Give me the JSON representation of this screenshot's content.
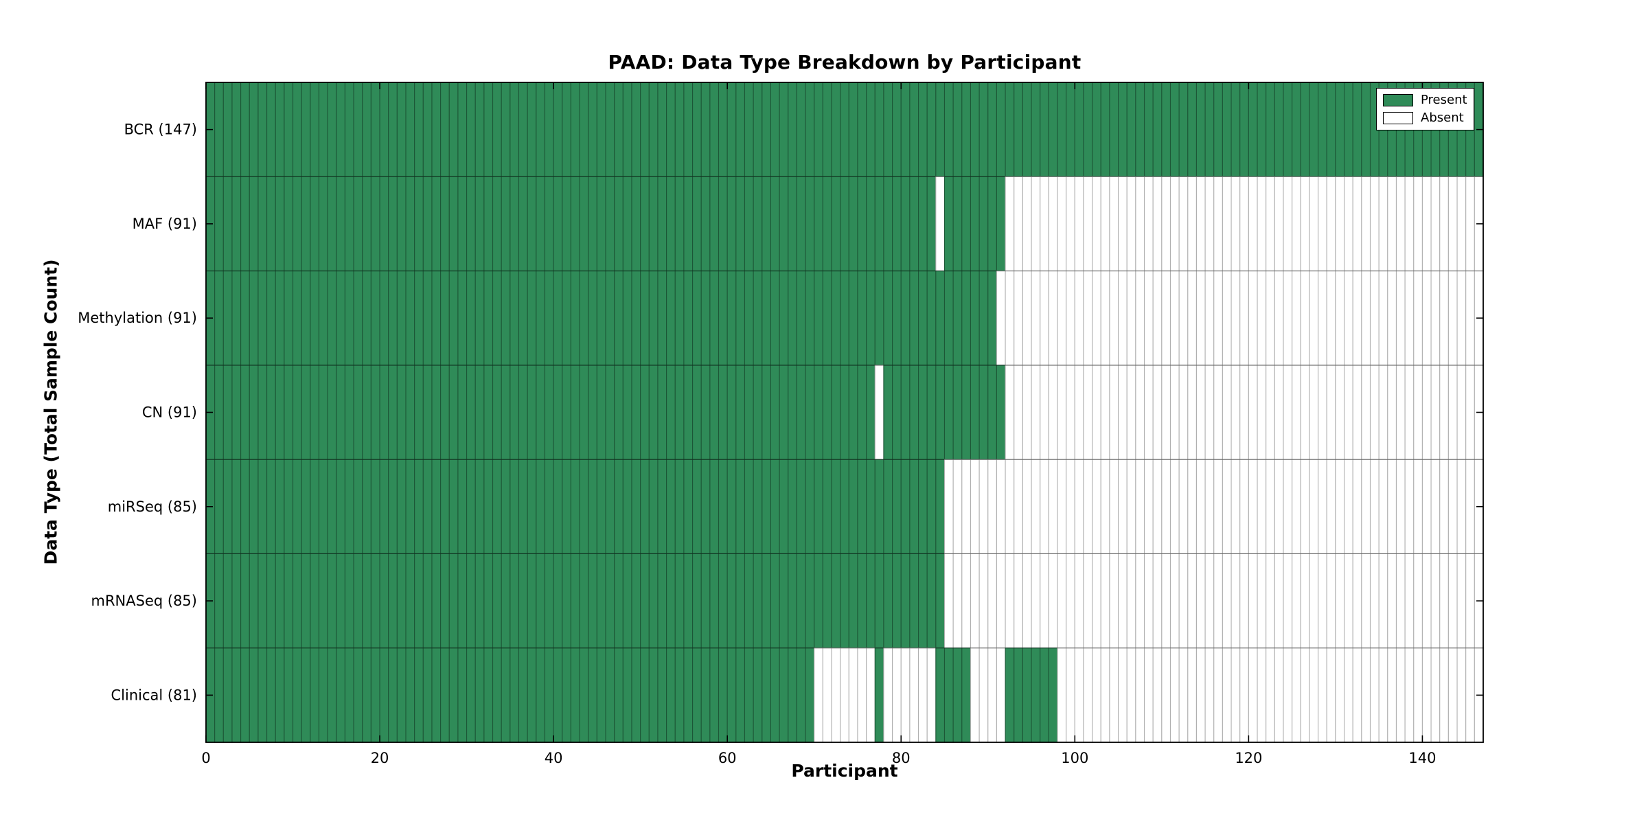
{
  "title": "PAAD: Data Type Breakdown by Participant",
  "xlabel": "Participant",
  "ylabel": "Data Type (Total Sample Count)",
  "legend": {
    "items": [
      {
        "label": "Present",
        "state": "present"
      },
      {
        "label": "Absent",
        "state": "absent"
      }
    ]
  },
  "colors": {
    "present_fill": "#2f8b58",
    "present_edge": "#1d5737",
    "absent_fill": "#ffffff",
    "absent_edge": "#b0b0b0",
    "separator": "rgba(0,0,0,0.42)",
    "spine": "#000000",
    "tick": "#000000",
    "text": "#000000"
  },
  "chart_data": {
    "type": "heatmap",
    "title": "PAAD: Data Type Breakdown by Participant",
    "xlabel": "Participant",
    "ylabel": "Data Type (Total Sample Count)",
    "x_axis": {
      "min": 0,
      "max": 147,
      "ticks": [
        0,
        20,
        40,
        60,
        80,
        100,
        120,
        140
      ]
    },
    "legend": [
      "Present",
      "Absent"
    ],
    "legend_position": "upper right",
    "note": "present_ranges are [start,end) participant index intervals; each of the 147 participant columns is green (present) if inside a range, else white (absent)",
    "rows": [
      {
        "label": "BCR (147)",
        "name": "BCR",
        "count": 147,
        "present_ranges": [
          [
            0,
            147
          ]
        ]
      },
      {
        "label": "MAF (91)",
        "name": "MAF",
        "count": 91,
        "present_ranges": [
          [
            0,
            84
          ],
          [
            85,
            92
          ]
        ]
      },
      {
        "label": "Methylation (91)",
        "name": "Methylation",
        "count": 91,
        "present_ranges": [
          [
            0,
            91
          ]
        ]
      },
      {
        "label": "CN (91)",
        "name": "CN",
        "count": 91,
        "present_ranges": [
          [
            0,
            77
          ],
          [
            78,
            92
          ]
        ]
      },
      {
        "label": "miRSeq (85)",
        "name": "miRSeq",
        "count": 85,
        "present_ranges": [
          [
            0,
            85
          ]
        ]
      },
      {
        "label": "mRNASeq (85)",
        "name": "mRNASeq",
        "count": 85,
        "present_ranges": [
          [
            0,
            85
          ]
        ]
      },
      {
        "label": "Clinical (81)",
        "name": "Clinical",
        "count": 81,
        "present_ranges": [
          [
            0,
            70
          ],
          [
            77,
            78
          ],
          [
            84,
            88
          ],
          [
            92,
            98
          ]
        ]
      }
    ]
  }
}
